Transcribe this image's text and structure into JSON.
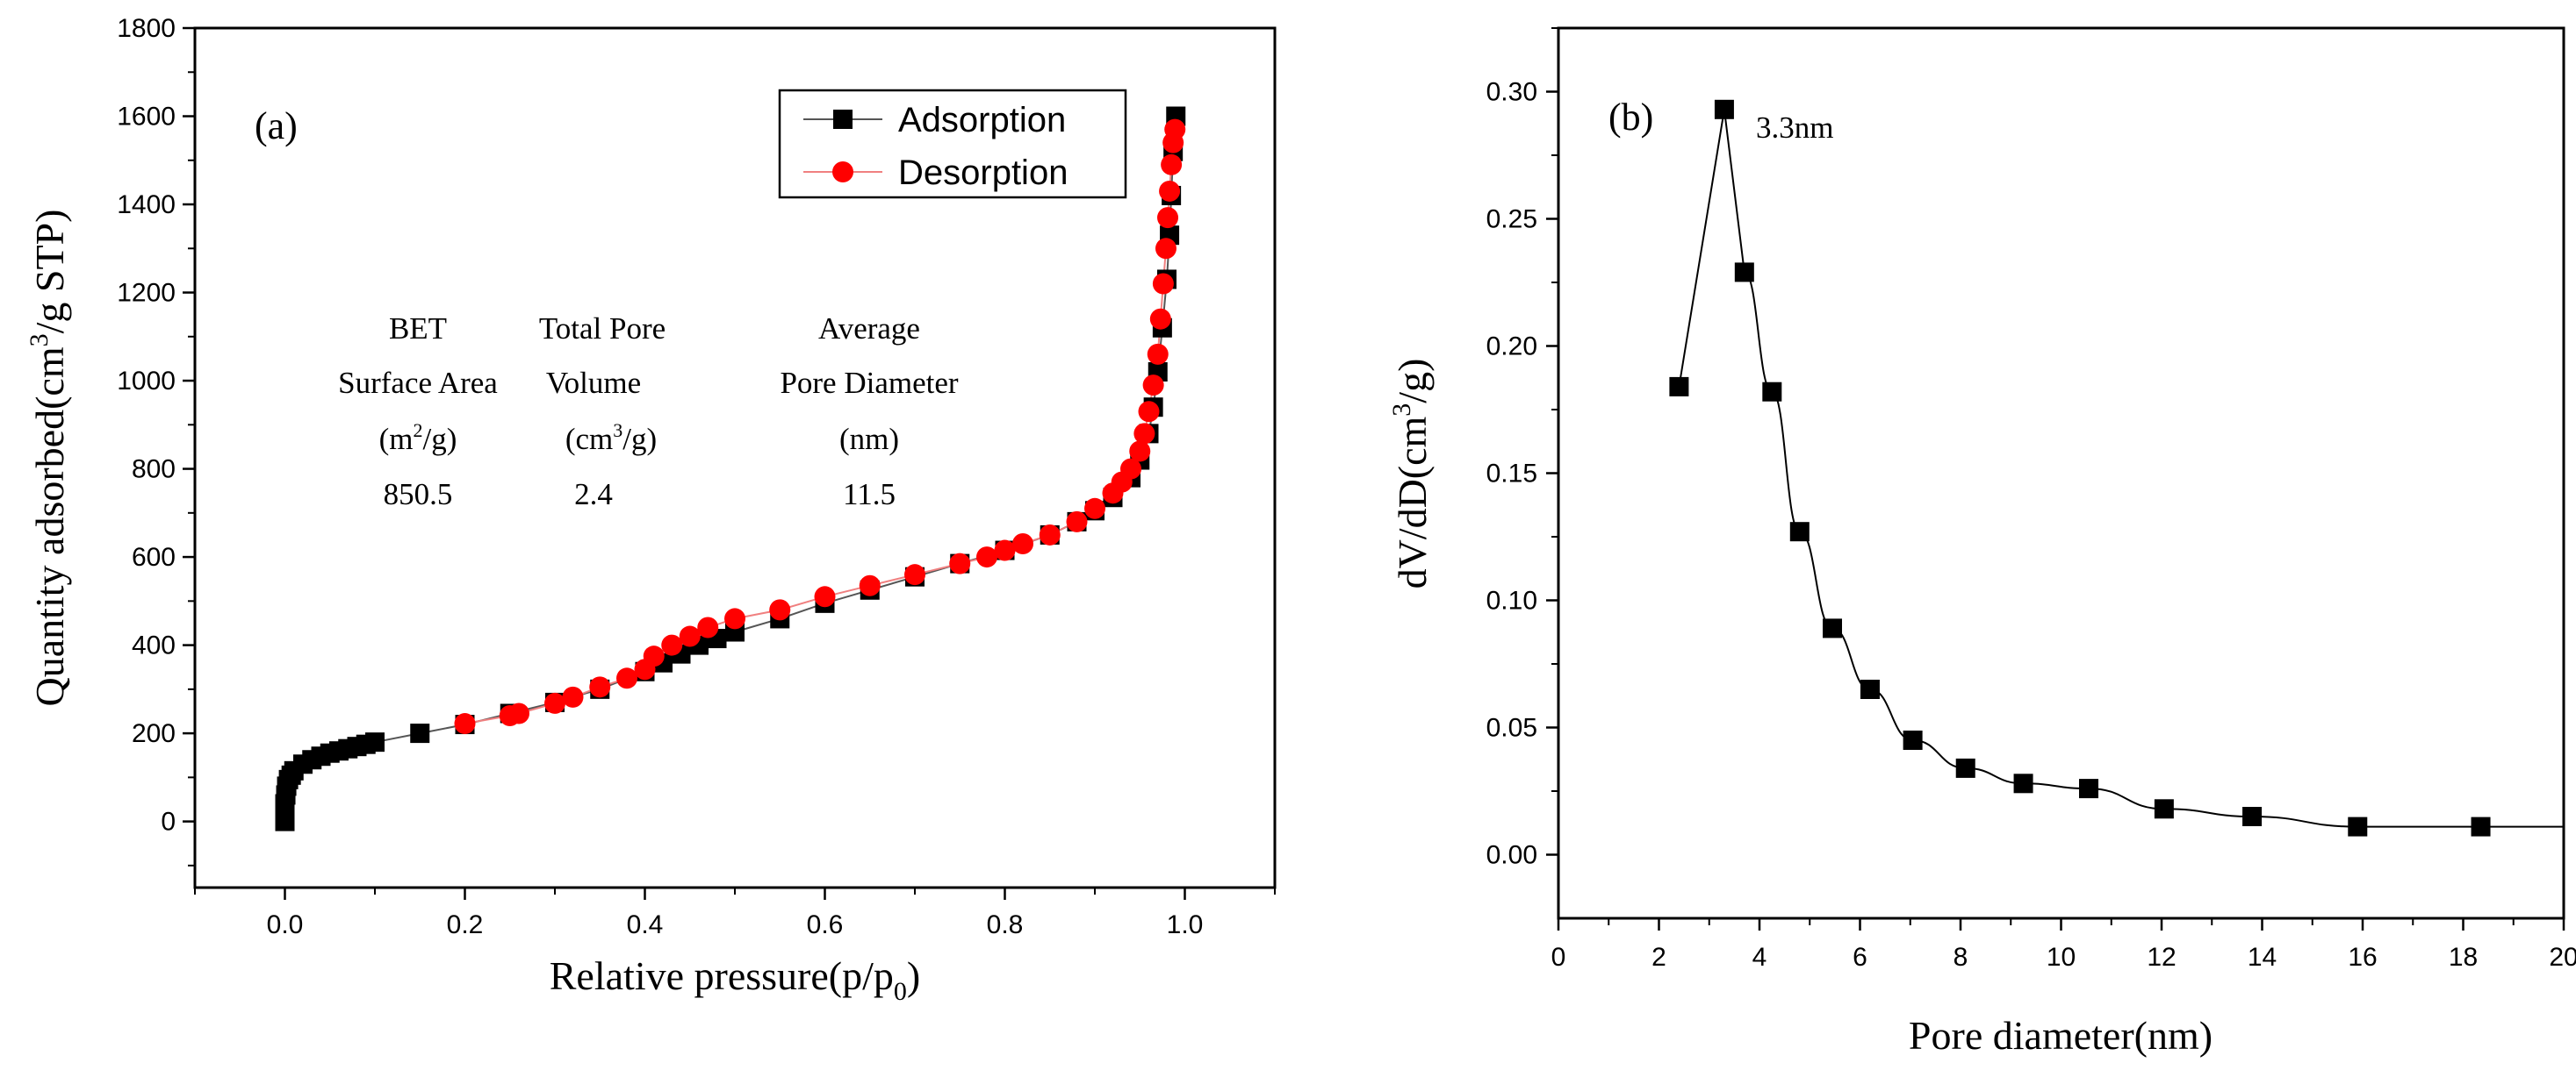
{
  "chart_data": [
    {
      "type": "scatter",
      "panel_label": "(a)",
      "xlabel": "Relative pressure(p/p",
      "xlabel_sub": "0",
      "xlabel_tail": ")",
      "ylabel": "Quantity adsorbed(cm",
      "ylabel_sup": "3",
      "ylabel_tail": "/g STP)",
      "xlim": [
        -0.1,
        1.1
      ],
      "ylim": [
        -150,
        1800
      ],
      "x_ticks": [
        "0.0",
        "0.2",
        "0.4",
        "0.6",
        "0.8",
        "1.0"
      ],
      "y_ticks": [
        "0",
        "200",
        "400",
        "600",
        "800",
        "1000",
        "1200",
        "1400",
        "1600",
        "1800"
      ],
      "legend": {
        "placement": "top-right",
        "entries": [
          "Adsorption",
          "Desorption"
        ]
      },
      "series": [
        {
          "name": "Adsorption",
          "color": "#000000",
          "marker": "square",
          "x": [
            0.0,
            0.0,
            0.0,
            0.001,
            0.002,
            0.004,
            0.007,
            0.01,
            0.02,
            0.03,
            0.04,
            0.05,
            0.06,
            0.07,
            0.08,
            0.09,
            0.1,
            0.15,
            0.2,
            0.25,
            0.3,
            0.35,
            0.4,
            0.42,
            0.44,
            0.46,
            0.48,
            0.5,
            0.55,
            0.6,
            0.65,
            0.7,
            0.75,
            0.8,
            0.85,
            0.88,
            0.9,
            0.92,
            0.94,
            0.95,
            0.96,
            0.965,
            0.97,
            0.975,
            0.98,
            0.983,
            0.985,
            0.987,
            0.99
          ],
          "y": [
            0,
            20,
            40,
            60,
            80,
            95,
            105,
            115,
            130,
            140,
            148,
            155,
            160,
            165,
            170,
            175,
            180,
            200,
            220,
            245,
            270,
            300,
            340,
            360,
            380,
            400,
            415,
            430,
            460,
            495,
            525,
            555,
            585,
            615,
            650,
            680,
            705,
            735,
            780,
            820,
            880,
            940,
            1020,
            1120,
            1230,
            1330,
            1420,
            1520,
            1600
          ]
        },
        {
          "name": "Desorption",
          "color": "#ff0000",
          "marker": "circle",
          "x": [
            0.2,
            0.25,
            0.26,
            0.3,
            0.32,
            0.35,
            0.38,
            0.4,
            0.41,
            0.43,
            0.45,
            0.47,
            0.5,
            0.55,
            0.6,
            0.65,
            0.7,
            0.75,
            0.78,
            0.8,
            0.82,
            0.85,
            0.88,
            0.9,
            0.92,
            0.93,
            0.94,
            0.95,
            0.955,
            0.96,
            0.965,
            0.97,
            0.973,
            0.976,
            0.979,
            0.981,
            0.983,
            0.985,
            0.987,
            0.989
          ],
          "y": [
            222,
            240,
            245,
            268,
            282,
            305,
            325,
            345,
            375,
            400,
            420,
            440,
            460,
            480,
            510,
            535,
            560,
            585,
            600,
            615,
            630,
            650,
            680,
            710,
            745,
            770,
            800,
            840,
            880,
            930,
            990,
            1060,
            1140,
            1220,
            1300,
            1370,
            1430,
            1490,
            1540,
            1570
          ]
        }
      ],
      "annotations": {
        "col1": [
          "BET",
          "Surface Area",
          "(m",
          "2",
          "/g)",
          "850.5"
        ],
        "col2": [
          "Total Pore",
          "Volume",
          "(cm",
          "3",
          "/g)",
          "2.4"
        ],
        "col3": [
          "Average",
          "Pore Diameter",
          "(nm)",
          "11.5"
        ]
      }
    },
    {
      "type": "line",
      "panel_label": "(b)",
      "xlabel": "Pore diameter(nm)",
      "ylabel": "dV/dD(cm",
      "ylabel_sup": "3",
      "ylabel_tail": "/g)",
      "xlim": [
        0,
        20
      ],
      "ylim": [
        -0.025,
        0.325
      ],
      "x_ticks": [
        "0",
        "2",
        "4",
        "6",
        "8",
        "10",
        "12",
        "14",
        "16",
        "18",
        "20"
      ],
      "y_ticks": [
        "0.00",
        "0.05",
        "0.10",
        "0.15",
        "0.20",
        "0.25",
        "0.30"
      ],
      "peak_label": "3.3nm",
      "series": [
        {
          "name": "dV/dD",
          "color": "#000000",
          "marker": "square",
          "x": [
            2.4,
            3.3,
            3.7,
            4.25,
            4.8,
            5.45,
            6.2,
            7.05,
            8.1,
            9.25,
            10.55,
            12.05,
            13.8,
            15.9,
            18.35
          ],
          "y": [
            0.184,
            0.293,
            0.229,
            0.182,
            0.127,
            0.089,
            0.065,
            0.045,
            0.034,
            0.028,
            0.026,
            0.018,
            0.015,
            0.011,
            0.011
          ]
        }
      ]
    }
  ]
}
